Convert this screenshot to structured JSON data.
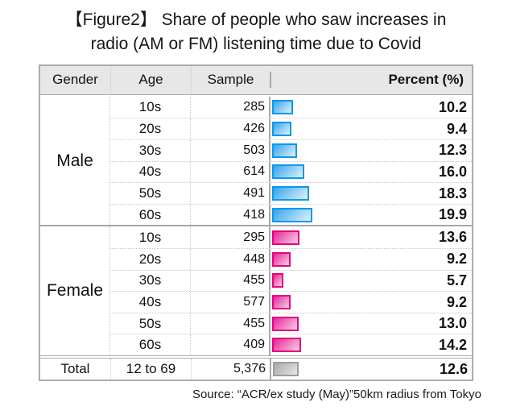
{
  "title": {
    "line1": "【Figure2】 Share of people who saw increases in",
    "line2": "radio (AM or FM) listening time due to Covid"
  },
  "source": "Source: “ACR/ex study (May)”50km radius from Tokyo",
  "table": {
    "headers": [
      "Gender",
      "Age",
      "Sample",
      "Percent (%)"
    ],
    "groups": [
      {
        "gender": "Male",
        "bar": {
          "border": "#0d97ec",
          "from": "#36a5ec",
          "to": "#d6eefb"
        },
        "rows": [
          {
            "age": "10s",
            "sample": "285",
            "percent": "10.2",
            "value": 10.2
          },
          {
            "age": "20s",
            "sample": "426",
            "percent": "9.4",
            "value": 9.4
          },
          {
            "age": "30s",
            "sample": "503",
            "percent": "12.3",
            "value": 12.3
          },
          {
            "age": "40s",
            "sample": "614",
            "percent": "16.0",
            "value": 16.0
          },
          {
            "age": "50s",
            "sample": "491",
            "percent": "18.3",
            "value": 18.3
          },
          {
            "age": "60s",
            "sample": "418",
            "percent": "19.9",
            "value": 19.9
          }
        ]
      },
      {
        "gender": "Female",
        "bar": {
          "border": "#e4017e",
          "from": "#e9259b",
          "to": "#f7c6e2"
        },
        "rows": [
          {
            "age": "10s",
            "sample": "295",
            "percent": "13.6",
            "value": 13.6
          },
          {
            "age": "20s",
            "sample": "448",
            "percent": "9.2",
            "value": 9.2
          },
          {
            "age": "30s",
            "sample": "455",
            "percent": "5.7",
            "value": 5.7
          },
          {
            "age": "40s",
            "sample": "577",
            "percent": "9.2",
            "value": 9.2
          },
          {
            "age": "50s",
            "sample": "455",
            "percent": "13.0",
            "value": 13.0
          },
          {
            "age": "60s",
            "sample": "409",
            "percent": "14.2",
            "value": 14.2
          }
        ]
      }
    ],
    "total": {
      "gender": "Total",
      "age": "12 to 69",
      "sample": "5,376",
      "percent": "12.6",
      "value": 12.6,
      "bar": {
        "border": "#9d9d9d",
        "from": "#a9a9a9",
        "to": "#e4e4e4"
      }
    }
  },
  "colors": {
    "header_bg": "#e8e6e7",
    "solid_border": "#acacac",
    "dotted_border": "#c8c8c8",
    "male_bar": "#29a3ec",
    "female_bar": "#e9259b",
    "total_bar": "#b3b3b3"
  },
  "chart_data": {
    "type": "bar",
    "orientation": "horizontal",
    "title": "【Figure2】 Share of people who saw increases in radio (AM or FM) listening time due to Covid",
    "xlabel": "Percent (%)",
    "xlim": [
      0,
      100
    ],
    "grid": false,
    "series": [
      {
        "name": "Male",
        "categories": [
          "10s",
          "20s",
          "30s",
          "40s",
          "50s",
          "60s"
        ],
        "samples": [
          285,
          426,
          503,
          614,
          491,
          418
        ],
        "values": [
          10.2,
          9.4,
          12.3,
          16.0,
          18.3,
          19.9
        ],
        "color": "#29a3ec"
      },
      {
        "name": "Female",
        "categories": [
          "10s",
          "20s",
          "30s",
          "40s",
          "50s",
          "60s"
        ],
        "samples": [
          295,
          448,
          455,
          577,
          455,
          409
        ],
        "values": [
          13.6,
          9.2,
          5.7,
          9.2,
          13.0,
          14.2
        ],
        "color": "#e9259b"
      },
      {
        "name": "Total",
        "categories": [
          "12 to 69"
        ],
        "samples": [
          5376
        ],
        "values": [
          12.6
        ],
        "color": "#b3b3b3"
      }
    ],
    "source_note": "Source: “ACR/ex study (May)”50km radius from Tokyo"
  }
}
